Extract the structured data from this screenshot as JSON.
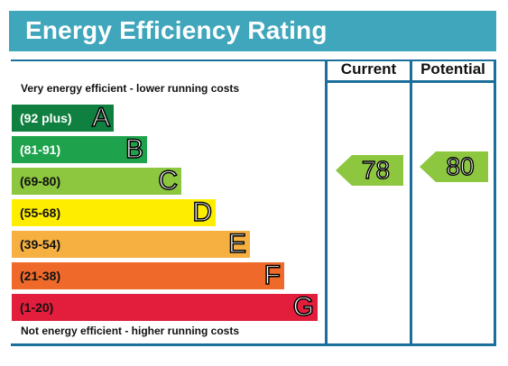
{
  "title": "Energy Efficiency Rating",
  "columns": {
    "current": "Current",
    "potential": "Potential"
  },
  "top_note": "Very energy efficient - lower running costs",
  "bottom_note": "Not energy efficient - higher running costs",
  "bands": [
    {
      "range": "(92 plus)",
      "letter": "A",
      "color": "#108040",
      "text_color": "#ffffff"
    },
    {
      "range": "(81-91)",
      "letter": "B",
      "color": "#1ea34c",
      "text_color": "#ffffff"
    },
    {
      "range": "(69-80)",
      "letter": "C",
      "color": "#8dc63f",
      "text_color": "#111111"
    },
    {
      "range": "(55-68)",
      "letter": "D",
      "color": "#ffed00",
      "text_color": "#111111"
    },
    {
      "range": "(39-54)",
      "letter": "E",
      "color": "#f5b041",
      "text_color": "#111111"
    },
    {
      "range": "(21-38)",
      "letter": "F",
      "color": "#ef6a2a",
      "text_color": "#111111"
    },
    {
      "range": "(1-20)",
      "letter": "G",
      "color": "#e31d3c",
      "text_color": "#111111"
    }
  ],
  "current_rating": {
    "value": "78",
    "band": "C",
    "color": "#8dc63f"
  },
  "potential_rating": {
    "value": "80",
    "band": "C",
    "color": "#8dc63f"
  },
  "colors": {
    "header": "#3fa6bc",
    "frame": "#1b6f9c"
  }
}
